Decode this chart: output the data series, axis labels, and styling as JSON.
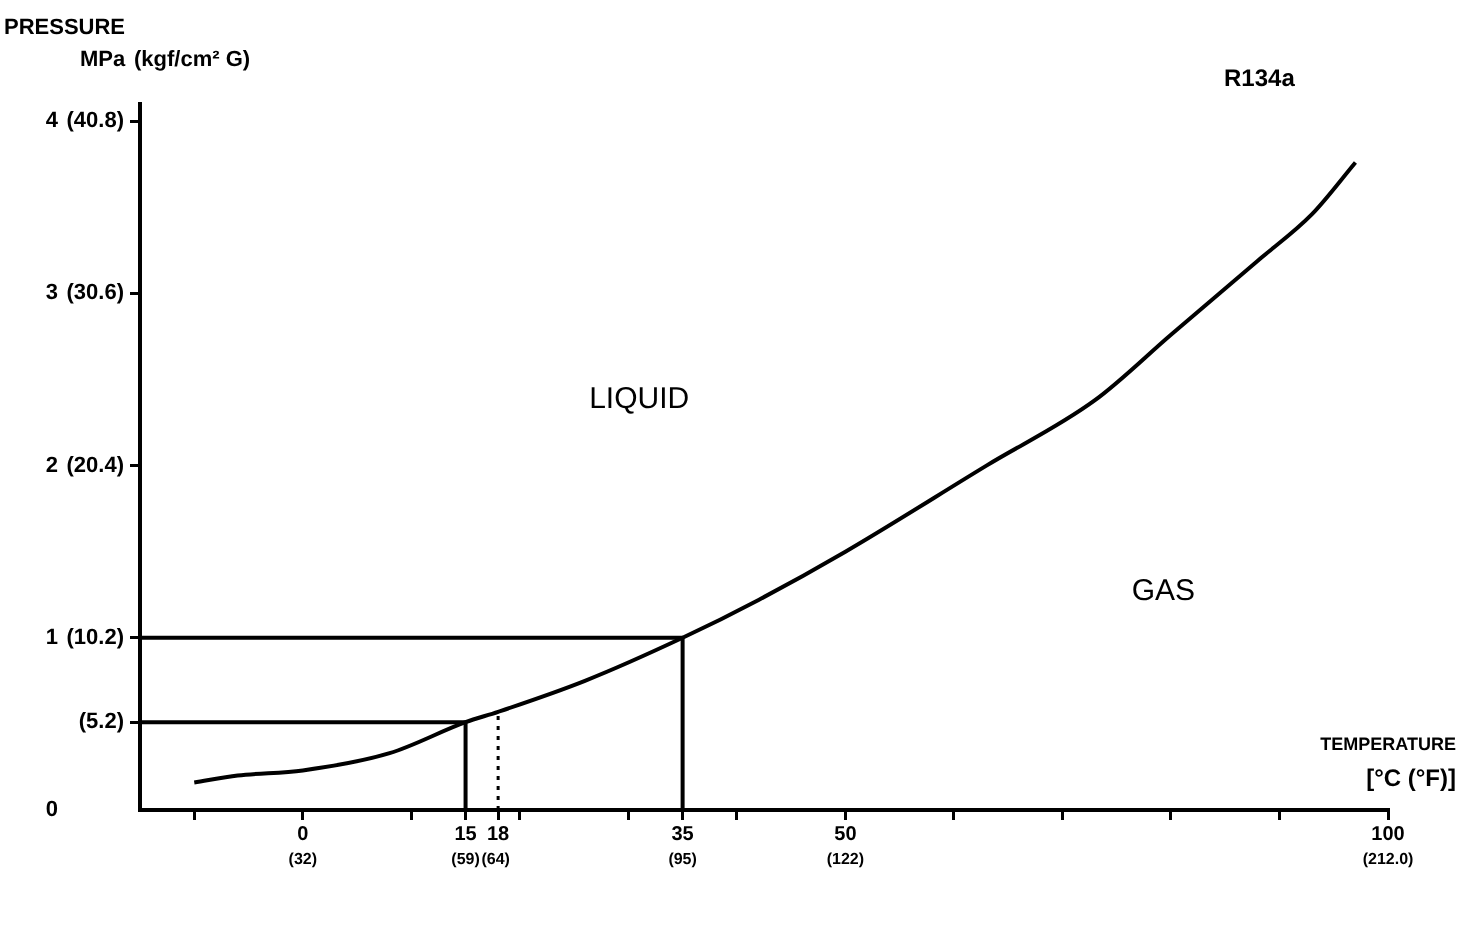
{
  "chart_data": {
    "type": "line",
    "title": "R134a",
    "xlabel": "TEMPERATURE\n[°C (°F)]",
    "ylabel": "PRESSURE\nMPa",
    "y2label": "(kgf/cm² G)",
    "annotations": [
      "LIQUID",
      "GAS"
    ],
    "xlim": [
      -15,
      100
    ],
    "xticks": [
      {
        "value": -10,
        "label": null
      },
      0,
      {
        "value": 10,
        "label": null
      },
      15,
      18,
      {
        "value": 20,
        "label": null
      },
      {
        "value": 30,
        "label": null
      },
      35,
      {
        "value": 40,
        "label": null
      },
      50,
      {
        "value": 60,
        "label": null
      },
      {
        "value": 70,
        "label": null
      },
      {
        "value": 80,
        "label": null
      },
      {
        "value": 90,
        "label": null
      },
      100
    ],
    "x2lim": [
      5,
      212
    ],
    "x2ticks": [
      {
        "value": 32,
        "label": "(32)"
      },
      {
        "value": 59,
        "label": "(59)"
      },
      {
        "value": 64,
        "label": "(64)"
      },
      {
        "value": 95,
        "label": "(95)"
      },
      {
        "value": 122,
        "label": "(122)"
      },
      {
        "value": 212,
        "label": "(212.0)"
      }
    ],
    "ylim": [
      0,
      4.1
    ],
    "yticks": [
      0,
      1,
      2,
      3,
      4
    ],
    "y2lim": [
      0,
      41.82
    ],
    "y2ticks": [
      {
        "value": 5.2,
        "label": "(5.2)"
      },
      {
        "value": 10.2,
        "label": "(10.2)"
      },
      {
        "value": 20.4,
        "label": "(20.4)"
      },
      {
        "value": 30.6,
        "label": "(30.6)"
      },
      {
        "value": 40.8,
        "label": "(40.8)"
      }
    ],
    "series": [
      {
        "color": "#000000",
        "x": [
          -10,
          -6,
          0,
          8,
          15,
          18,
          26,
          35,
          42,
          50,
          63,
          73,
          80,
          88,
          93,
          97
        ],
        "values": [
          0.16,
          0.2,
          0.23,
          0.33,
          0.51,
          0.57,
          0.75,
          1,
          1.22,
          1.5,
          2,
          2.38,
          2.76,
          3.19,
          3.46,
          3.76
        ]
      },
      {
        "color": "#000000",
        "x": [
          -15,
          35,
          35
        ],
        "values": [
          1,
          1,
          0
        ]
      },
      {
        "color": "#000000",
        "x": [
          -15,
          15,
          15
        ],
        "values": [
          0.51,
          0.51,
          0
        ]
      },
      {
        "color": "#000000",
        "x": [
          18,
          18
        ],
        "values": [
          0,
          0.57
        ],
        "line_style": "dotted"
      }
    ]
  }
}
